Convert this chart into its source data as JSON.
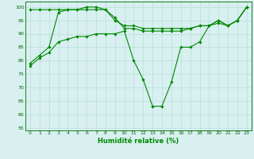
{
  "xlabel": "Humidité relative (%)",
  "background_color": "#d8f0f0",
  "grid_color": "#b8ddd8",
  "line_color": "#008800",
  "xlim": [
    -0.5,
    23.5
  ],
  "ylim": [
    54,
    102
  ],
  "yticks": [
    55,
    60,
    65,
    70,
    75,
    80,
    85,
    90,
    95,
    100
  ],
  "xticks": [
    0,
    1,
    2,
    3,
    4,
    5,
    6,
    7,
    8,
    9,
    10,
    11,
    12,
    13,
    14,
    15,
    16,
    17,
    18,
    19,
    20,
    21,
    22,
    23
  ],
  "line_top": [
    99,
    99,
    99,
    99,
    99,
    99,
    99,
    99,
    99,
    95,
    93,
    93,
    92,
    92,
    92,
    92,
    92,
    92,
    93,
    93,
    95,
    93,
    95,
    100
  ],
  "line_mid": [
    79,
    82,
    85,
    98,
    99,
    99,
    100,
    100,
    99,
    96,
    92,
    92,
    91,
    91,
    91,
    91,
    91,
    92,
    93,
    93,
    95,
    93,
    95,
    100
  ],
  "line_bot": [
    78,
    81,
    83,
    87,
    88,
    89,
    89,
    90,
    90,
    90,
    91,
    80,
    73,
    63,
    63,
    72,
    85,
    85,
    87,
    93,
    94,
    93,
    95,
    100
  ]
}
